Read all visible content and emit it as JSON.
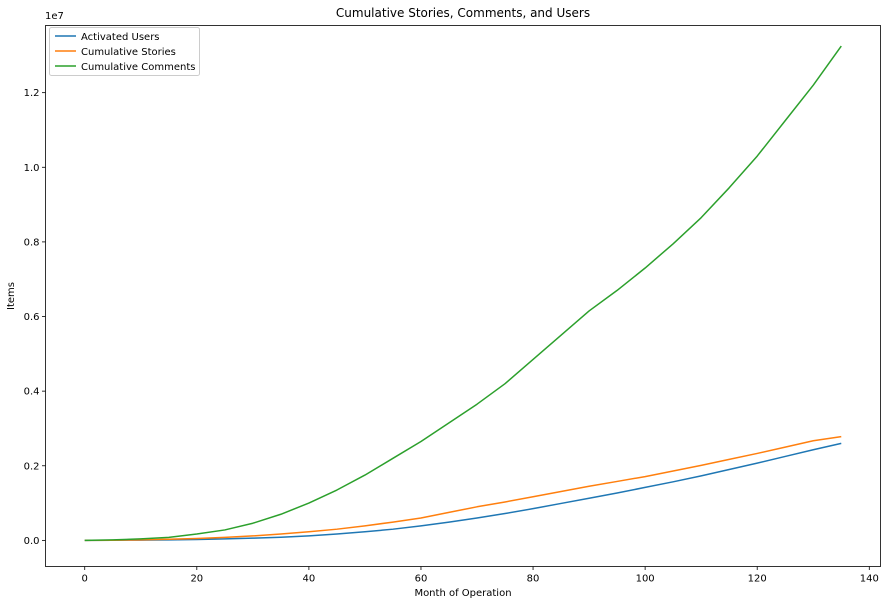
{
  "chart_data": {
    "type": "line",
    "title": "Cumulative Stories, Comments, and Users",
    "xlabel": "Month of Operation",
    "ylabel": "Items",
    "y_offset_label": "1e7",
    "xlim": [
      -7,
      142
    ],
    "ylim": [
      -0.07,
      1.38
    ],
    "xticks": [
      0,
      20,
      40,
      60,
      80,
      100,
      120,
      140
    ],
    "xtick_labels": [
      "0",
      "20",
      "40",
      "60",
      "80",
      "100",
      "120",
      "140"
    ],
    "yticks": [
      0.0,
      0.2,
      0.4,
      0.6,
      0.8,
      1.0,
      1.2
    ],
    "ytick_labels": [
      "0.0",
      "0.2",
      "0.4",
      "0.6",
      "0.8",
      "1.0",
      "1.2"
    ],
    "grid": false,
    "legend_position": "top-left",
    "series": [
      {
        "name": "Activated Users",
        "color": "#1f77b4",
        "x": [
          0,
          5,
          10,
          15,
          20,
          25,
          30,
          35,
          40,
          45,
          50,
          55,
          60,
          65,
          70,
          75,
          80,
          85,
          90,
          95,
          100,
          105,
          110,
          115,
          120,
          125,
          130,
          135
        ],
        "y": [
          0.0,
          0.0003,
          0.0008,
          0.0015,
          0.0025,
          0.004,
          0.006,
          0.0085,
          0.012,
          0.017,
          0.023,
          0.03,
          0.039,
          0.049,
          0.06,
          0.072,
          0.085,
          0.099,
          0.113,
          0.127,
          0.142,
          0.157,
          0.173,
          0.19,
          0.207,
          0.225,
          0.243,
          0.26
        ]
      },
      {
        "name": "Cumulative Stories",
        "color": "#ff7f0e",
        "x": [
          0,
          5,
          10,
          15,
          20,
          25,
          30,
          35,
          40,
          45,
          50,
          55,
          60,
          65,
          70,
          75,
          80,
          85,
          90,
          95,
          100,
          105,
          110,
          115,
          120,
          125,
          130,
          135
        ],
        "y": [
          0.0,
          0.0005,
          0.0015,
          0.003,
          0.005,
          0.008,
          0.012,
          0.017,
          0.023,
          0.03,
          0.039,
          0.049,
          0.06,
          0.075,
          0.09,
          0.103,
          0.117,
          0.131,
          0.145,
          0.158,
          0.171,
          0.186,
          0.201,
          0.217,
          0.233,
          0.25,
          0.267,
          0.278
        ]
      },
      {
        "name": "Cumulative Comments",
        "color": "#2ca02c",
        "x": [
          0,
          5,
          10,
          15,
          20,
          25,
          30,
          35,
          40,
          45,
          50,
          55,
          60,
          65,
          70,
          75,
          80,
          85,
          90,
          95,
          100,
          105,
          110,
          115,
          120,
          125,
          130,
          135
        ],
        "y": [
          0.0,
          0.0015,
          0.004,
          0.008,
          0.017,
          0.028,
          0.046,
          0.07,
          0.1,
          0.135,
          0.175,
          0.22,
          0.265,
          0.315,
          0.365,
          0.42,
          0.485,
          0.55,
          0.615,
          0.67,
          0.73,
          0.795,
          0.865,
          0.945,
          1.03,
          1.125,
          1.22,
          1.325
        ]
      }
    ]
  }
}
